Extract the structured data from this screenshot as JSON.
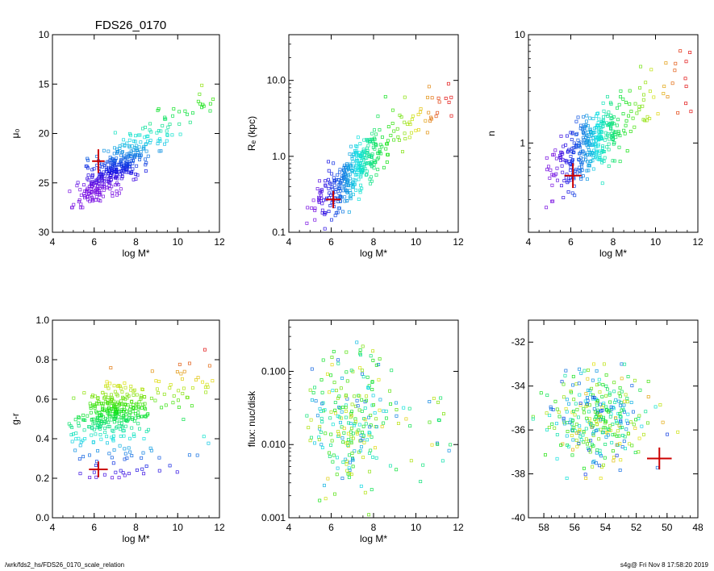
{
  "figure": {
    "title": "FDS26_0170",
    "footer_left": "/wrk/fds2_hs/FDS26_0170_scale_relation",
    "footer_right": "s4g@  Fri Nov  8 17:58:20 2019"
  },
  "chart_data": [
    {
      "type": "scatter",
      "id": "mu0",
      "xlabel": "log M*",
      "ylabel": "μ₀",
      "xlim": [
        4,
        12
      ],
      "ylim": [
        30,
        10
      ],
      "yscale": "linear",
      "yreversed": true,
      "xticks": [
        "4",
        "6",
        "8",
        "10",
        "12"
      ],
      "yticks": [
        "10",
        "15",
        "20",
        "25",
        "30"
      ],
      "ytick_values": [
        10,
        15,
        20,
        25,
        30
      ],
      "highlight": {
        "x": 6.2,
        "y": 22.8,
        "xerr": 0.3,
        "yerr": 1.2,
        "color": "#cc0000"
      },
      "pointset": "mu0"
    },
    {
      "type": "scatter",
      "id": "re",
      "xlabel": "log M*",
      "ylabel": "Rₑ (kpc)",
      "xlim": [
        4,
        12
      ],
      "ylim": [
        0.1,
        40
      ],
      "yscale": "log",
      "xticks": [
        "4",
        "6",
        "8",
        "10",
        "12"
      ],
      "yticks": [
        "0.1",
        "1.0",
        "10.0"
      ],
      "ytick_values": [
        0.1,
        1.0,
        10.0
      ],
      "highlight": {
        "x": 6.1,
        "y": 0.27,
        "xerr": 0.35,
        "yerr_factor": 1.3,
        "color": "#cc0000"
      },
      "pointset": "re"
    },
    {
      "type": "scatter",
      "id": "n",
      "xlabel": "log M*",
      "ylabel": "n",
      "xlim": [
        4,
        12
      ],
      "ylim": [
        0.15,
        10
      ],
      "yscale": "log",
      "xticks": [
        "4",
        "6",
        "8",
        "10",
        "12"
      ],
      "yticks": [
        "1",
        "10"
      ],
      "ytick_values": [
        1,
        10
      ],
      "highlight": {
        "x": 6.1,
        "y": 0.5,
        "xerr": 0.4,
        "yerr_factor": 1.3,
        "color": "#cc0000"
      },
      "pointset": "n"
    },
    {
      "type": "scatter",
      "id": "gr",
      "xlabel": "log M*",
      "ylabel": "g-r",
      "xlim": [
        4,
        12
      ],
      "ylim": [
        0.0,
        1.0
      ],
      "yscale": "linear",
      "xticks": [
        "4",
        "6",
        "8",
        "10",
        "12"
      ],
      "yticks": [
        "0.0",
        "0.2",
        "0.4",
        "0.6",
        "0.8",
        "1.0"
      ],
      "ytick_values": [
        0.0,
        0.2,
        0.4,
        0.6,
        0.8,
        1.0
      ],
      "highlight": {
        "x": 6.2,
        "y": 0.245,
        "xerr": 0.45,
        "yerr": 0.04,
        "color": "#cc0000"
      },
      "pointset": "gr"
    },
    {
      "type": "scatter",
      "id": "flux",
      "xlabel": "log M*",
      "ylabel": "flux: nuc/disk",
      "xlim": [
        4,
        12
      ],
      "ylim": [
        0.001,
        0.5
      ],
      "yscale": "log",
      "xticks": [
        "4",
        "6",
        "8",
        "10",
        "12"
      ],
      "yticks": [
        "0.001",
        "0.010",
        "0.100"
      ],
      "ytick_values": [
        0.001,
        0.01,
        0.1
      ],
      "pointset": "flux"
    },
    {
      "type": "scatter",
      "id": "mag",
      "xlabel": "",
      "ylabel": "",
      "xlim": [
        59,
        48
      ],
      "ylim": [
        -40,
        -31
      ],
      "yscale": "linear",
      "xreversed": true,
      "xticks": [
        "58",
        "56",
        "54",
        "52",
        "50",
        "48"
      ],
      "xtick_values": [
        58,
        56,
        54,
        52,
        50,
        48
      ],
      "yticks": [
        "-32",
        "-34",
        "-36",
        "-38",
        "-40"
      ],
      "ytick_values": [
        -32,
        -34,
        -36,
        -38,
        -40
      ],
      "highlight": {
        "x": 50.5,
        "y": -37.3,
        "xerr": 0.8,
        "yerr": 0.5,
        "color": "#cc0000"
      },
      "pointset": "mag"
    }
  ]
}
